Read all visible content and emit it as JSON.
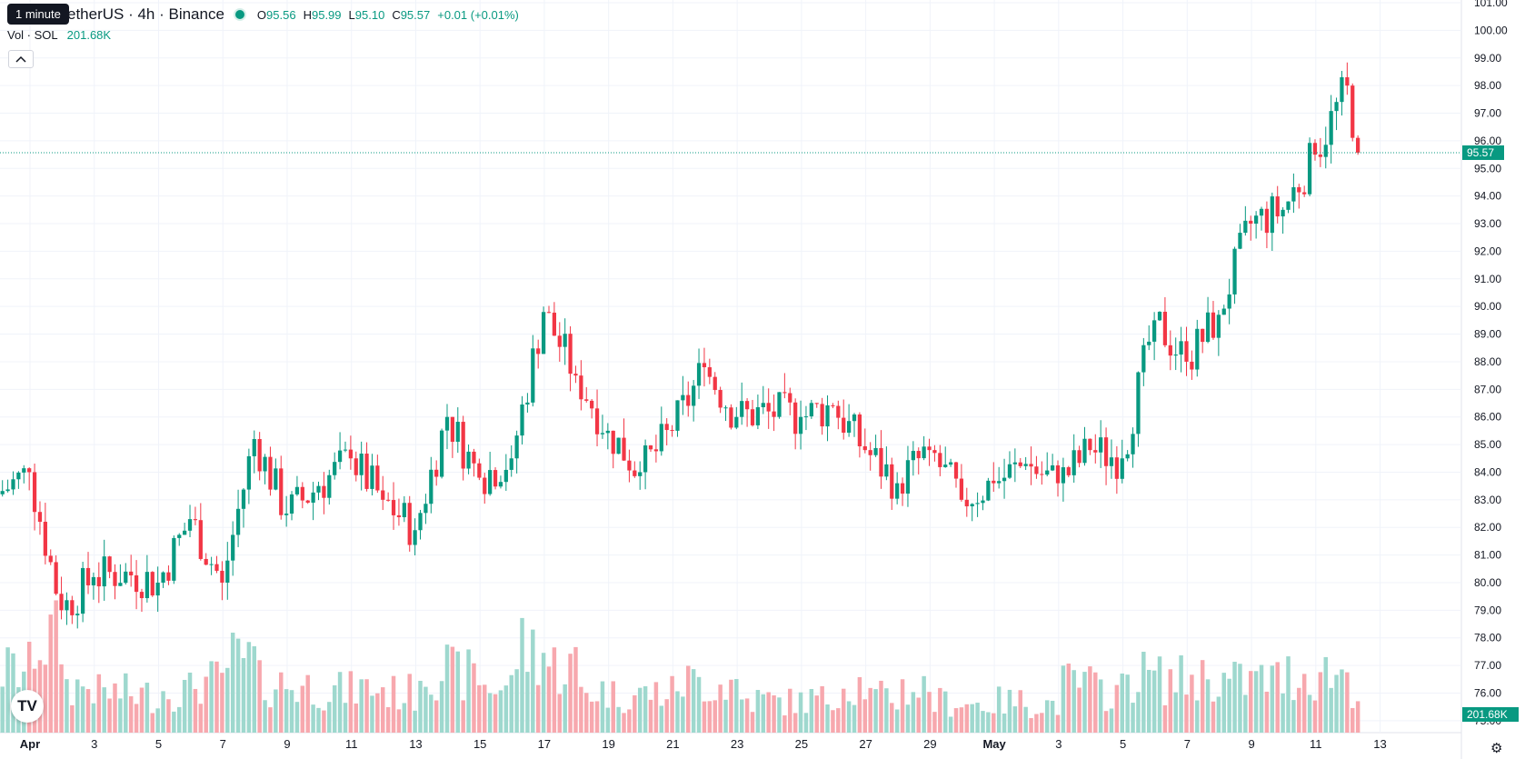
{
  "tooltip": "1 minute",
  "legend": {
    "title": "etherUS · 4h · Binance",
    "o_label": "O",
    "o": "95.56",
    "h_label": "H",
    "h": "95.99",
    "l_label": "L",
    "l": "95.10",
    "c_label": "C",
    "c": "95.57",
    "change": "+0.01 (+0.01%)"
  },
  "volume": {
    "label": "Vol · SOL",
    "value": "201.68K"
  },
  "price_axis": [
    "101.00",
    "100.00",
    "99.00",
    "98.00",
    "97.00",
    "96.00",
    "95.00",
    "94.00",
    "93.00",
    "92.00",
    "91.00",
    "90.00",
    "89.00",
    "88.00",
    "87.00",
    "86.00",
    "85.00",
    "84.00",
    "83.00",
    "82.00",
    "81.00",
    "80.00",
    "79.00",
    "78.00",
    "77.00",
    "76.00",
    "75.00"
  ],
  "last_price": "95.57",
  "last_volume": "201.68K",
  "time_axis": [
    "Apr",
    "3",
    "5",
    "7",
    "9",
    "11",
    "13",
    "15",
    "17",
    "19",
    "21",
    "23",
    "25",
    "27",
    "29",
    "May",
    "3",
    "5",
    "7",
    "9",
    "11",
    "13"
  ],
  "colors": {
    "up": "#089981",
    "down": "#f23645",
    "up_vol": "#9ed8ce",
    "down_vol": "#f7a8ae",
    "grid": "#f0f3fa"
  },
  "icons": {
    "logo": "tradingview-logo-icon",
    "settings": "gear-icon",
    "collapse": "chevron-up-icon"
  },
  "chart_data": {
    "type": "candlestick",
    "interval": "4h",
    "y_range": [
      75,
      101
    ],
    "days": [
      "2024-04-01",
      "2024-04-02",
      "2024-04-03",
      "2024-04-04",
      "2024-04-05",
      "2024-04-06",
      "2024-04-07",
      "2024-04-08",
      "2024-04-09",
      "2024-04-10",
      "2024-04-11",
      "2024-04-12",
      "2024-04-13",
      "2024-04-14",
      "2024-04-15",
      "2024-04-16",
      "2024-04-17",
      "2024-04-18",
      "2024-04-19",
      "2024-04-20",
      "2024-04-21",
      "2024-04-22",
      "2024-04-23",
      "2024-04-24",
      "2024-04-25",
      "2024-04-26",
      "2024-04-27",
      "2024-04-28",
      "2024-04-29",
      "2024-04-30",
      "2024-05-01",
      "2024-05-02",
      "2024-05-03",
      "2024-05-04",
      "2024-05-05",
      "2024-05-06",
      "2024-05-07",
      "2024-05-08",
      "2024-05-09",
      "2024-05-10",
      "2024-05-11",
      "2024-05-12",
      "2024-05-13"
    ],
    "daily_close": [
      84.0,
      79.0,
      80.2,
      80.4,
      80.0,
      82.3,
      80.0,
      85.2,
      82.5,
      83.5,
      84.5,
      83.0,
      81.9,
      86.0,
      83.8,
      84.5,
      89.8,
      87.5,
      85.5,
      84.0,
      85.5,
      87.8,
      86.0,
      86.2,
      86.0,
      86.4,
      84.8,
      83.6,
      84.8,
      83.0,
      83.6,
      84.3,
      83.6,
      84.8,
      84.5,
      89.5,
      88.0,
      89.7,
      93.0,
      93.5,
      95.5,
      98.0,
      95.57
    ],
    "daily_volume_k": [
      280,
      420,
      210,
      180,
      170,
      190,
      230,
      320,
      220,
      210,
      190,
      200,
      180,
      290,
      260,
      210,
      380,
      300,
      190,
      170,
      180,
      230,
      220,
      150,
      140,
      150,
      220,
      160,
      200,
      140,
      130,
      140,
      130,
      220,
      190,
      260,
      240,
      250,
      230,
      240,
      260,
      270,
      201.68
    ]
  }
}
